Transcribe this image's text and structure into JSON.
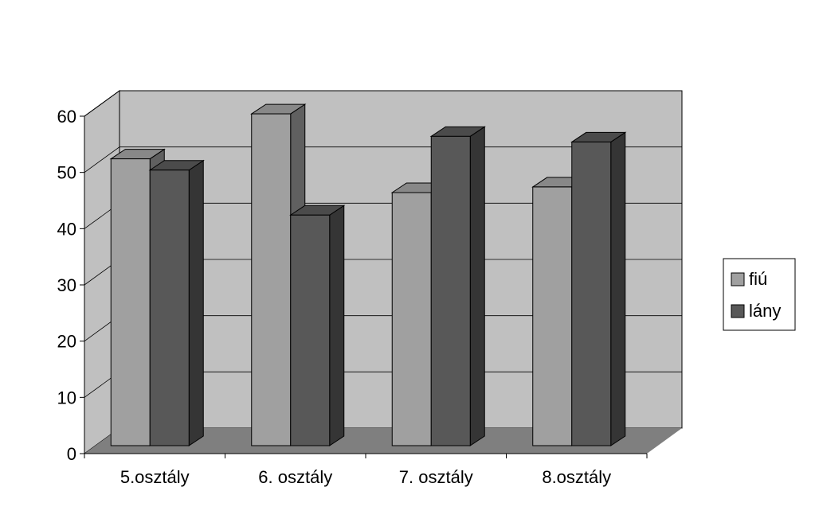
{
  "chart_data": {
    "type": "bar",
    "categories": [
      "5.osztály",
      "6. osztály",
      "7. osztály",
      "8.osztály"
    ],
    "series": [
      {
        "name": "fiú",
        "values": [
          51,
          59,
          45,
          46
        ]
      },
      {
        "name": "lány",
        "values": [
          49,
          41,
          55,
          54
        ]
      }
    ],
    "ylim": [
      0,
      60
    ],
    "yticks": [
      0,
      10,
      20,
      30,
      40,
      50,
      60
    ],
    "grid": true,
    "legend": "right",
    "colors": {
      "fiú": "#a0a0a0",
      "lány": "#585858",
      "wall": "#c0c0c0",
      "floor": "#7f7f7f"
    }
  }
}
